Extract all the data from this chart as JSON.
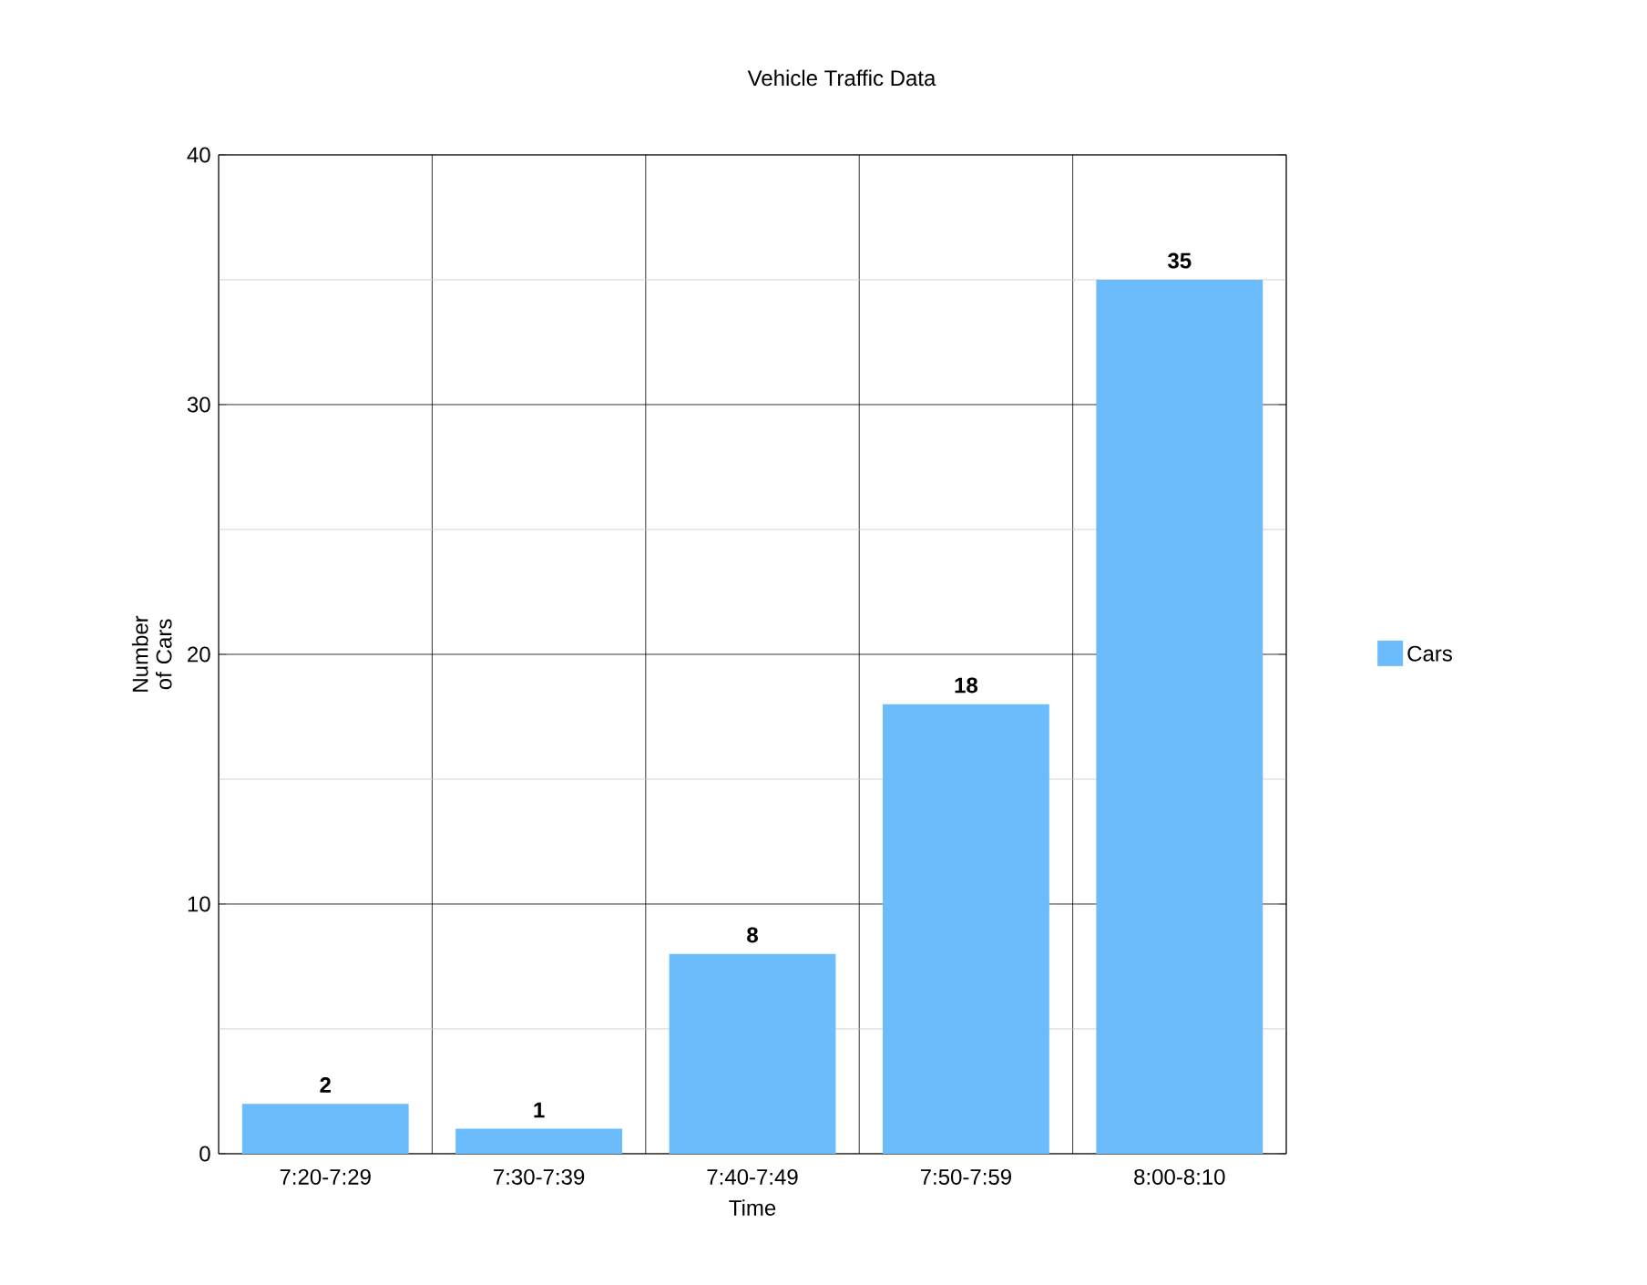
{
  "chart_data": {
    "type": "bar",
    "title": "Vehicle Traffic Data",
    "xlabel": "Time",
    "ylabel": "Number of Cars",
    "categories": [
      "7:20-7:29",
      "7:30-7:39",
      "7:40-7:49",
      "7:50-7:59",
      "8:00-8:10"
    ],
    "series": [
      {
        "name": "Cars",
        "color": "#6bbcfc",
        "values": [
          2,
          1,
          8,
          18,
          35
        ]
      }
    ],
    "ylim": [
      0,
      40
    ],
    "yticks": [
      0,
      10,
      20,
      30,
      40
    ],
    "grid": true,
    "legend": "right",
    "data_labels": true
  }
}
